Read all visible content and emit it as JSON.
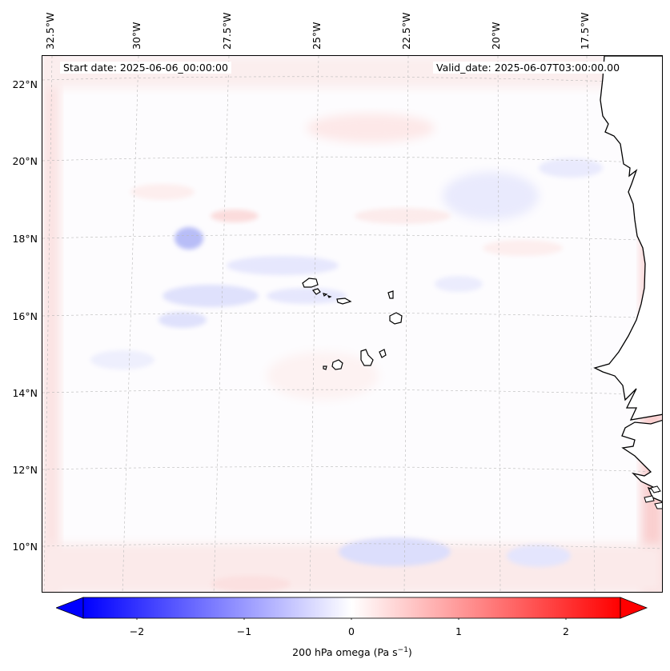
{
  "header": {
    "start_date": "Start date: 2025-06-06_00:00:00",
    "valid_date": "Valid_date: 2025-06-07T03:00:00.00"
  },
  "lon_labels": [
    "32.5°W",
    "30°W",
    "27.5°W",
    "25°W",
    "22.5°W",
    "20°W",
    "17.5°W"
  ],
  "lat_labels": [
    "22°N",
    "20°N",
    "18°N",
    "16°N",
    "14°N",
    "12°N",
    "10°N"
  ],
  "colorbar": {
    "variable": "200 hPa omega",
    "units_prefix": "(Pa s",
    "units_exp": "−1",
    "units_suffix": ")",
    "ticks": [
      "−2",
      "−1",
      "0",
      "1",
      "2"
    ],
    "min": -2.6,
    "max": 2.6,
    "colors": {
      "low": "#0000ff",
      "mid": "#ffffff",
      "high": "#ff0000"
    }
  },
  "map": {
    "coastline_color": "#000000",
    "gridline_color": "#b0b0b0"
  }
}
